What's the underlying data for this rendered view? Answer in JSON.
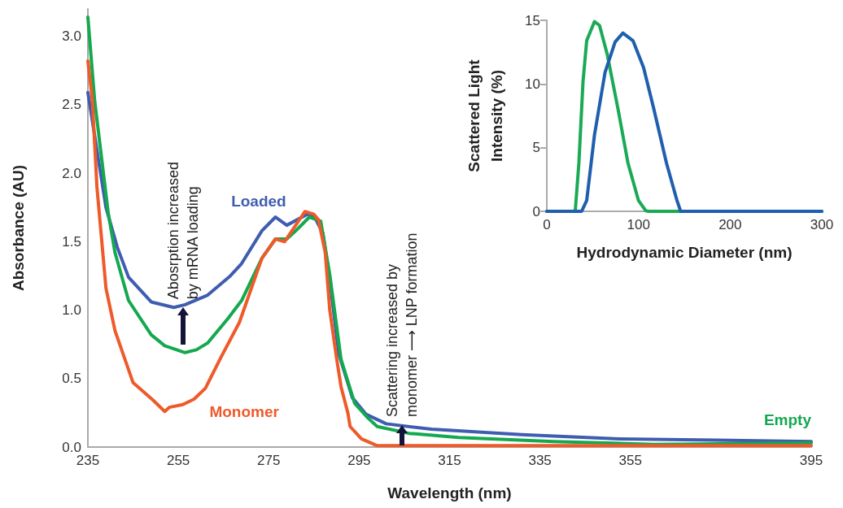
{
  "chart_data": [
    {
      "type": "line",
      "xlabel": "Wavelength (nm)",
      "ylabel": "Absorbance (AU)",
      "xlim": [
        235,
        395
      ],
      "xticks": [
        235,
        255,
        275,
        295,
        315,
        335,
        355,
        395
      ],
      "ylim": [
        0,
        3.2
      ],
      "yticks": [
        {
          "value": 0,
          "label": "0.0"
        },
        0.5,
        {
          "value": 1,
          "label": "1.0"
        },
        1.5,
        {
          "value": 2,
          "label": "2.0"
        },
        2.5,
        {
          "value": 3,
          "label": "3.0"
        }
      ],
      "marker": "none",
      "line_style": "solid",
      "annotations": [
        {
          "text": "Abosrption increased by mRNA loading",
          "x": 256,
          "y": 1.02
        },
        {
          "text": "Scattering increased by monomer ⟶ LNP formation",
          "x": 304.5,
          "y": 0.16
        }
      ],
      "series": [
        {
          "name": "Loaded",
          "color": "#3f5db0",
          "x": [
            235,
            239,
            241.5,
            244,
            249,
            254,
            256.5,
            261.5,
            266.5,
            269,
            273.5,
            276.5,
            279,
            283.5,
            285,
            287,
            288.5,
            290.5,
            293.5,
            296.5,
            301,
            311,
            331,
            352.5,
            374,
            395
          ],
          "values": [
            2.59,
            1.75,
            1.46,
            1.24,
            1.06,
            1.02,
            1.04,
            1.11,
            1.25,
            1.34,
            1.58,
            1.68,
            1.62,
            1.7,
            1.69,
            1.56,
            1.22,
            0.68,
            0.36,
            0.24,
            0.17,
            0.13,
            0.09,
            0.06,
            0.05,
            0.04
          ]
        },
        {
          "name": "Empty",
          "color": "#14a84f",
          "x": [
            235,
            236.5,
            239.5,
            241,
            244,
            249,
            252,
            256.5,
            259,
            261.5,
            266,
            269,
            273.5,
            276.5,
            279,
            281,
            284,
            286.5,
            288.5,
            291,
            294,
            297,
            299,
            306,
            317,
            338,
            360,
            395
          ],
          "values": [
            3.14,
            2.53,
            1.71,
            1.42,
            1.07,
            0.82,
            0.74,
            0.69,
            0.71,
            0.76,
            0.94,
            1.07,
            1.38,
            1.52,
            1.52,
            1.58,
            1.68,
            1.65,
            1.26,
            0.64,
            0.32,
            0.21,
            0.15,
            0.1,
            0.07,
            0.04,
            0.02,
            0.03
          ]
        },
        {
          "name": "Monomer",
          "color": "#ee5a2a",
          "x": [
            235,
            236,
            237,
            239,
            241,
            245,
            249.5,
            252,
            253,
            256,
            258.5,
            261,
            264.5,
            268.5,
            273.5,
            276.5,
            278.5,
            283,
            285,
            286,
            287.5,
            288.5,
            290,
            291,
            292.5,
            293,
            295.5,
            299,
            306,
            395
          ],
          "values": [
            2.82,
            2.53,
            1.9,
            1.16,
            0.85,
            0.47,
            0.34,
            0.26,
            0.29,
            0.31,
            0.35,
            0.43,
            0.66,
            0.91,
            1.38,
            1.52,
            1.5,
            1.72,
            1.7,
            1.66,
            1.42,
            1.0,
            0.65,
            0.44,
            0.25,
            0.15,
            0.06,
            0.01,
            0.01,
            0.01
          ]
        }
      ]
    },
    {
      "type": "line",
      "xlabel": "Hydrodynamic Diameter (nm)",
      "ylabel": "Scattered Light Intensity (%)",
      "xlim": [
        0,
        300
      ],
      "xticks": [
        0,
        100,
        200,
        300
      ],
      "ylim": [
        0,
        15
      ],
      "yticks": [
        0,
        5,
        10,
        15
      ],
      "marker": "none",
      "line_style": "solid",
      "series": [
        {
          "color": "#1aaa55",
          "x": [
            0,
            31,
            35,
            39.5,
            43.5,
            52,
            57.5,
            66,
            77.5,
            88.5,
            100,
            108,
            111,
            300
          ],
          "values": [
            0,
            0,
            3.8,
            10.2,
            13.4,
            14.9,
            14.6,
            12.3,
            8.1,
            3.8,
            0.85,
            0.04,
            0,
            0
          ]
        },
        {
          "color": "#1f5fad",
          "x": [
            0,
            38,
            43.5,
            52,
            63.5,
            74.5,
            83,
            94,
            105.5,
            116.5,
            130.5,
            142,
            146,
            300
          ],
          "values": [
            0,
            0,
            0.85,
            6,
            10.9,
            13.3,
            14,
            13.4,
            11.3,
            8.1,
            3.8,
            0.85,
            0,
            0
          ]
        }
      ]
    }
  ]
}
